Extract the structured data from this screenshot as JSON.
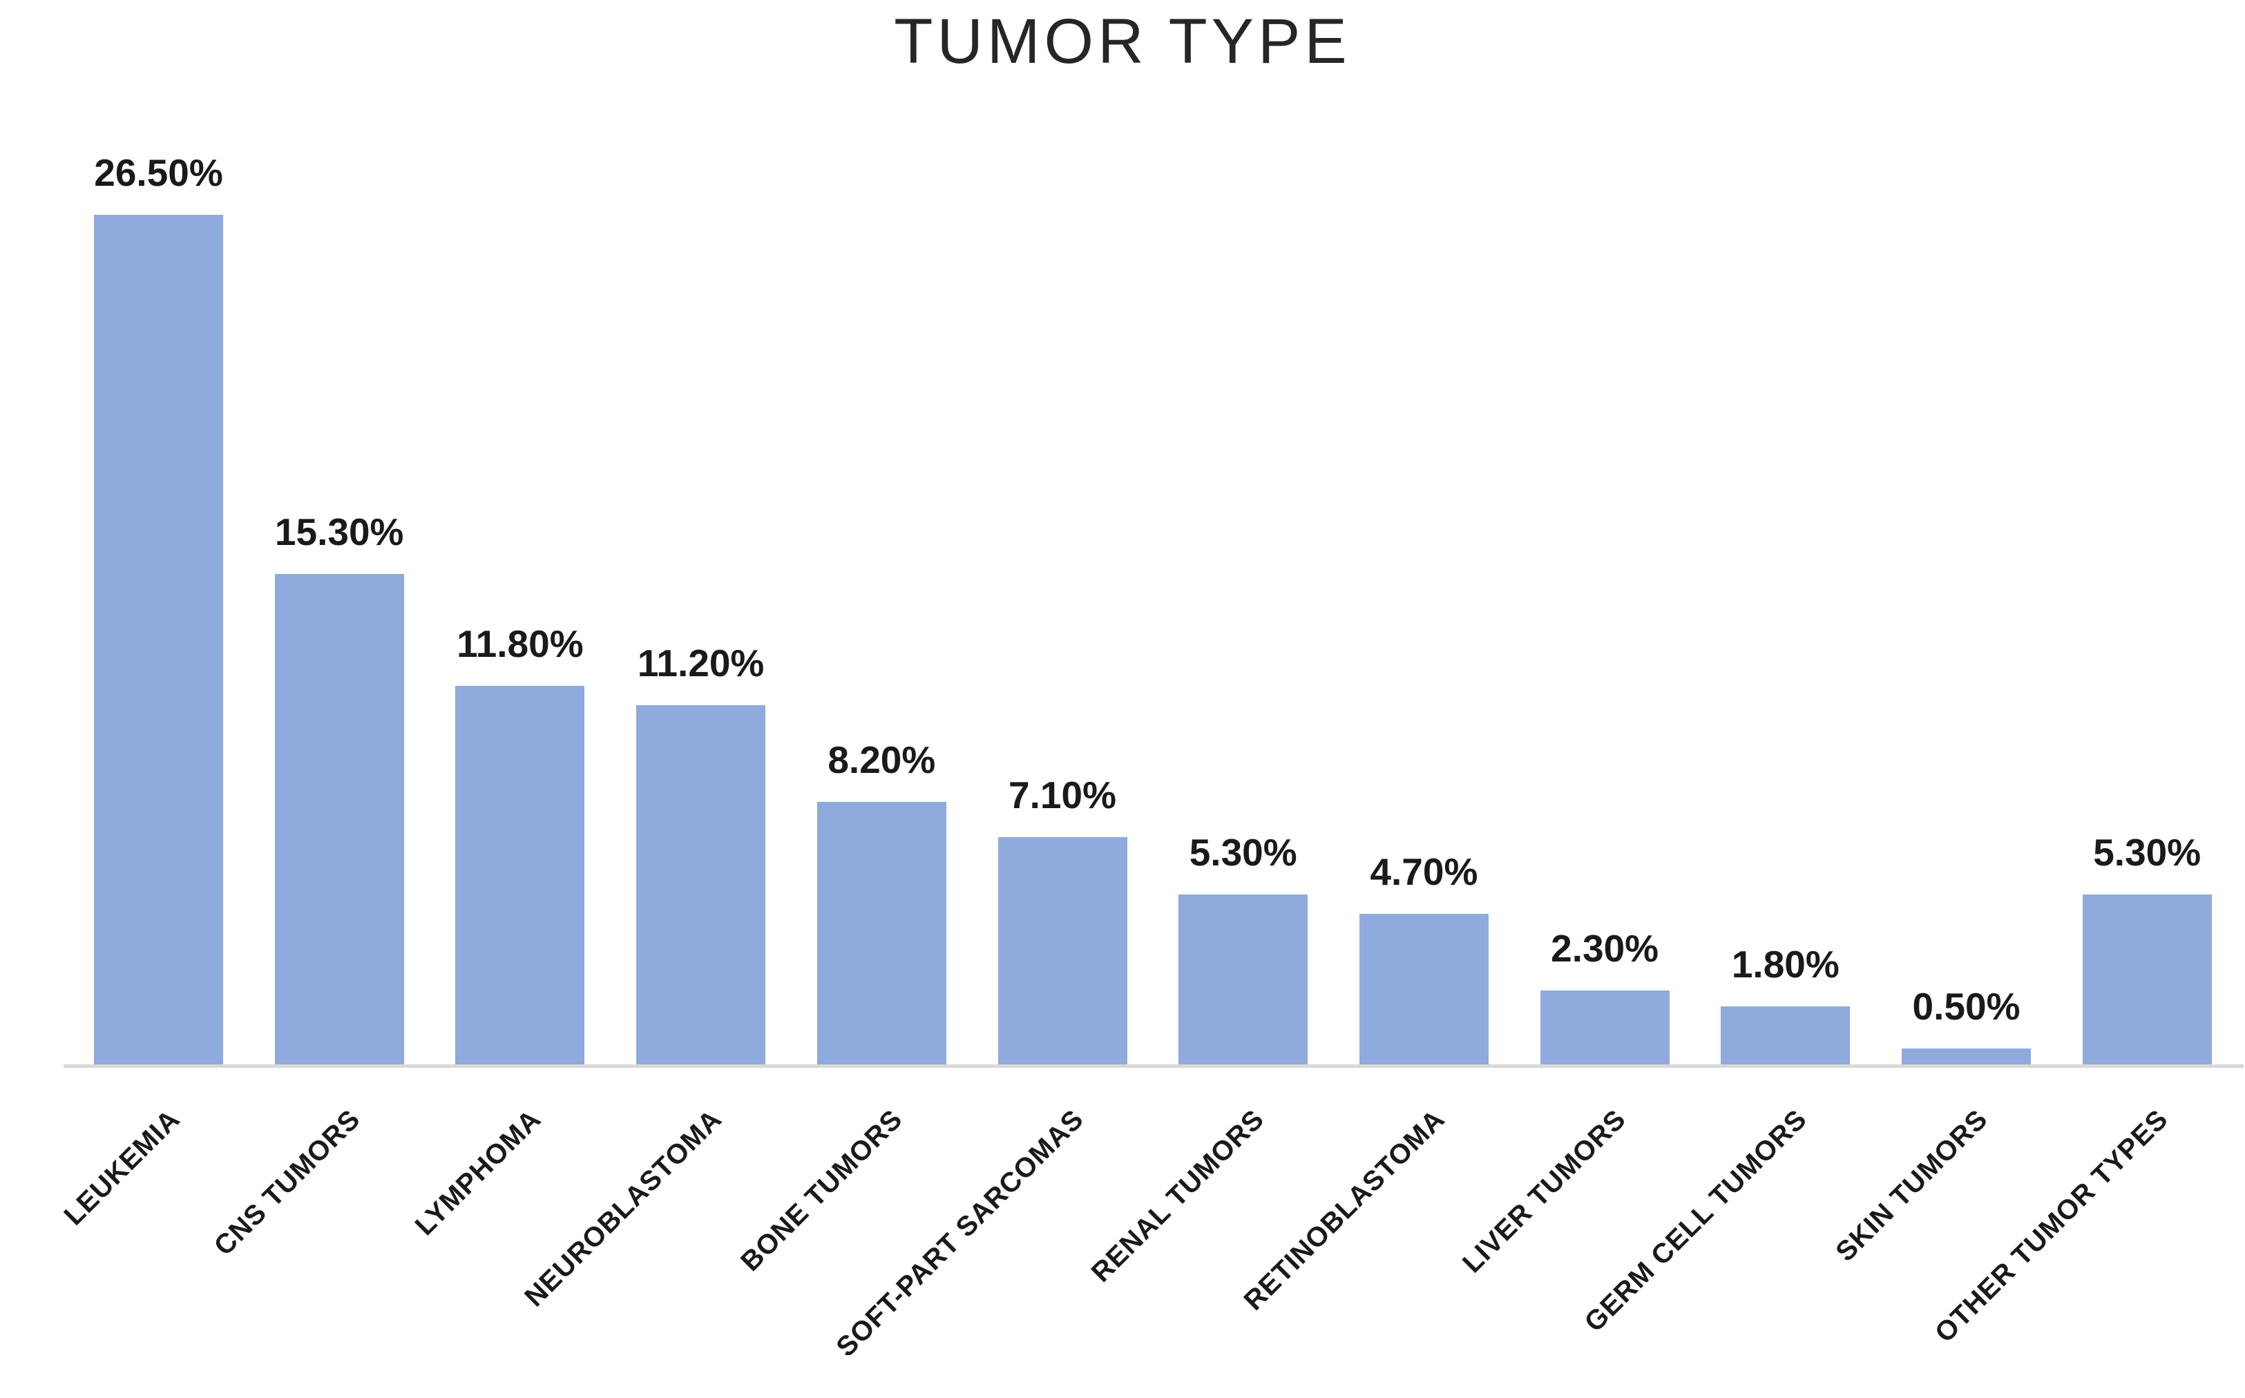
{
  "chart_data": {
    "type": "bar",
    "title": "TUMOR TYPE",
    "categories": [
      "LEUKEMIA",
      "CNS TUMORS",
      "LYMPHOMA",
      "NEUROBLASTOMA",
      "BONE TUMORS",
      "SOFT-PART SARCOMAS",
      "RENAL TUMORS",
      "RETINOBLASTOMA",
      "LIVER TUMORS",
      "GERM CELL TUMORS",
      "SKIN TUMORS",
      "OTHER TUMOR TYPES"
    ],
    "values": [
      26.5,
      15.3,
      11.8,
      11.2,
      8.2,
      7.1,
      5.3,
      4.7,
      2.3,
      1.8,
      0.5,
      5.3
    ],
    "data_labels": [
      "26.50%",
      "15.30%",
      "11.80%",
      "11.20%",
      "8.20%",
      "7.10%",
      "5.30%",
      "4.70%",
      "2.30%",
      "1.80%",
      "0.50%",
      "5.30%"
    ],
    "xlabel": "",
    "ylabel": "",
    "ylim": [
      0,
      27.5
    ],
    "bar_color": "#8FAADC",
    "axis_line_color": "#D9D9D9",
    "title_color": "#262626",
    "label_color": "#1A1A1A",
    "layout": {
      "grid": false,
      "y_axis_visible": false,
      "x_axis_line_visible": true,
      "data_labels_visible": true,
      "legend": "none",
      "category_label_rotation_deg": 45
    }
  }
}
